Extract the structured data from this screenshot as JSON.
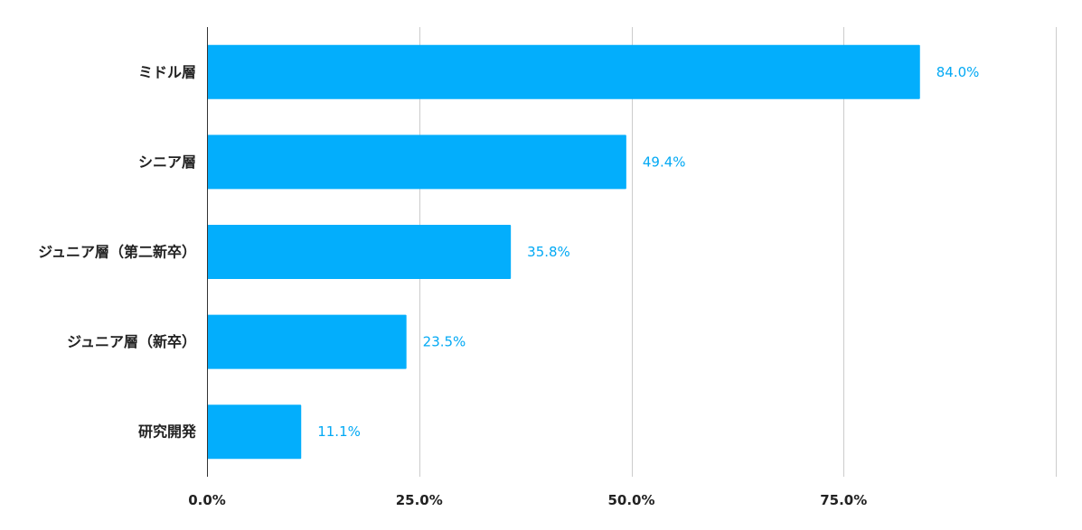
{
  "chart_data": {
    "type": "bar",
    "orientation": "horizontal",
    "categories": [
      "ミドル層",
      "シニア層",
      "ジュニア層（第二新卒）",
      "ジュニア層（新卒）",
      "研究開発"
    ],
    "values": [
      84.0,
      49.4,
      35.8,
      23.5,
      11.1
    ],
    "value_labels": [
      "84.0%",
      "49.4%",
      "35.8%",
      "23.5%",
      "11.1%"
    ],
    "x_ticks": [
      0,
      25,
      50,
      75
    ],
    "x_tick_labels": [
      "0.0%",
      "25.0%",
      "50.0%",
      "75.0%"
    ],
    "xlim": [
      0,
      100
    ],
    "grid": true,
    "legend": "none",
    "colors": {
      "bar": "#03aefc",
      "value_label": "#03a9f4",
      "grid": "#cccccc",
      "text": "#222222"
    }
  }
}
